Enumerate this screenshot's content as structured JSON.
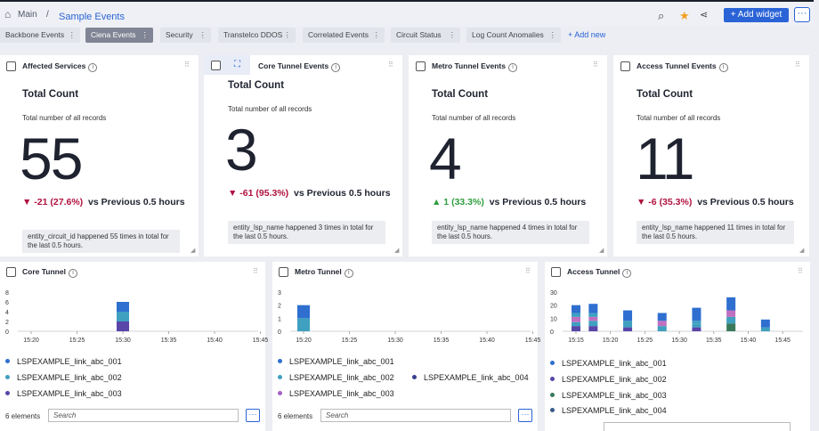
{
  "header": {
    "home_label": "Main",
    "separator": "/",
    "title": "Sample Events",
    "add_widget_label": "+ Add widget",
    "more_label": "···",
    "icons": [
      "search-icon",
      "star-icon",
      "share-icon"
    ]
  },
  "tabs": [
    {
      "label": "Backbone Events"
    },
    {
      "label": "Ciena Events",
      "active": true
    },
    {
      "label": "Security"
    },
    {
      "label": "Transtelco DDOS"
    },
    {
      "label": "Correlated Events"
    },
    {
      "label": "Circuit Status"
    },
    {
      "label": "Log Count Anomalies"
    }
  ],
  "add_new_label": "+ Add new",
  "stat_cards": [
    {
      "title": "Affected Services",
      "label": "Total Count",
      "sub": "Total number of all records",
      "value": "55",
      "delta": "▼ -21 (27.6%)",
      "delta_dir": "down",
      "compare": "vs Previous 0.5 hours",
      "note": "entity_circuit_id happened 55 times in total for the last 0.5 hours."
    },
    {
      "title": "Core Tunnel Events",
      "label": "Total Count",
      "sub": "Total number of all records",
      "value": "3",
      "delta": "▼ -61 (95.3%)",
      "delta_dir": "down",
      "compare": "vs Previous 0.5 hours",
      "note": "entity_lsp_name happened 3 times in total for the last 0.5 hours."
    },
    {
      "title": "Metro Tunnel Events",
      "label": "Total Count",
      "sub": "Total number of all records",
      "value": "4",
      "delta": "▲ 1 (33.3%)",
      "delta_dir": "up",
      "compare": "vs Previous 0.5 hours",
      "note": "entity_lsp_name happened 4 times in total for the last 0.5 hours."
    },
    {
      "title": "Access Tunnel Events",
      "label": "Total Count",
      "sub": "Total number of all records",
      "value": "11",
      "delta": "▼ -6 (35.3%)",
      "delta_dir": "down",
      "compare": "vs Previous 0.5 hours",
      "note": "entity_lsp_name happened 11 times in total for the last 0.5 hours."
    }
  ],
  "chart_panels": [
    {
      "title": "Core Tunnel",
      "elements_label": "6 elements",
      "search_placeholder": "Search",
      "legend": [
        {
          "name": "LSPEXAMPLE_link_abc_001",
          "color": "#2f6fd0"
        },
        {
          "name": "LSPEXAMPLE_link_abc_002",
          "color": "#3fa0c0"
        },
        {
          "name": "LSPEXAMPLE_link_abc_003",
          "color": "#5a45a8"
        }
      ]
    },
    {
      "title": "Metro Tunnel",
      "elements_label": "6 elements",
      "search_placeholder": "Search",
      "legend": [
        {
          "name": "LSPEXAMPLE_link_abc_001",
          "color": "#2f6fd0"
        },
        {
          "name": "LSPEXAMPLE_link_abc_002",
          "color": "#3fa0c0"
        },
        {
          "name": "LSPEXAMPLE_link_abc_004",
          "color": "#3a3f8f"
        },
        {
          "name": "LSPEXAMPLE_link_abc_003",
          "color": "#a560c8"
        }
      ]
    },
    {
      "title": "Access Tunnel",
      "elements_label": "",
      "legend": [
        {
          "name": "LSPEXAMPLE_link_abc_001",
          "color": "#2f6fd0"
        },
        {
          "name": "LSPEXAMPLE_link_abc_002",
          "color": "#5a45a8"
        },
        {
          "name": "LSPEXAMPLE_link_abc_003",
          "color": "#3a7a5a"
        },
        {
          "name": "LSPEXAMPLE_link_abc_004",
          "color": "#3a5a8a"
        }
      ]
    }
  ],
  "chart_data": [
    {
      "type": "bar",
      "x": [
        "15:20",
        "15:25",
        "15:30",
        "15:35",
        "15:40",
        "15:45"
      ],
      "yticks": [
        0,
        2,
        4,
        6,
        8
      ],
      "ylim": [
        0,
        8
      ],
      "stacks": [
        {
          "x": "15:30",
          "parts": [
            {
              "color": "#5a45a8",
              "value": 2
            },
            {
              "color": "#3fa0c0",
              "value": 2
            },
            {
              "color": "#2f6fd0",
              "value": 2
            }
          ]
        }
      ]
    },
    {
      "type": "bar",
      "x": [
        "15:20",
        "15:25",
        "15:30",
        "15:35",
        "15:40",
        "15:45"
      ],
      "yticks": [
        0,
        1,
        2,
        3
      ],
      "ylim": [
        0,
        3
      ],
      "stacks": [
        {
          "x": "15:20",
          "parts": [
            {
              "color": "#3fa0c0",
              "value": 1
            },
            {
              "color": "#2f6fd0",
              "value": 1
            }
          ]
        }
      ]
    },
    {
      "type": "bar",
      "x": [
        "15:15",
        "15:20",
        "15:25",
        "15:30",
        "15:35",
        "15:40",
        "15:45"
      ],
      "yticks": [
        0,
        10,
        20,
        30
      ],
      "ylim": [
        0,
        30
      ],
      "stacks": [
        {
          "x": "15:15",
          "parts": [
            {
              "color": "#5a45a8",
              "value": 4
            },
            {
              "color": "#3fa0c0",
              "value": 3
            },
            {
              "color": "#c070c0",
              "value": 4
            },
            {
              "color": "#3fa0c0",
              "value": 3
            },
            {
              "color": "#2f6fd0",
              "value": 6
            }
          ]
        },
        {
          "x": "15:17.5",
          "parts": [
            {
              "color": "#5a45a8",
              "value": 4
            },
            {
              "color": "#3fa0c0",
              "value": 4
            },
            {
              "color": "#c070c0",
              "value": 3
            },
            {
              "color": "#3fa0c0",
              "value": 3
            },
            {
              "color": "#2f6fd0",
              "value": 7
            }
          ]
        },
        {
          "x": "15:22.5",
          "parts": [
            {
              "color": "#5a45a8",
              "value": 3
            },
            {
              "color": "#3fa0c0",
              "value": 5
            },
            {
              "color": "#2f6fd0",
              "value": 8
            }
          ]
        },
        {
          "x": "15:27.5",
          "parts": [
            {
              "color": "#3fa0c0",
              "value": 4
            },
            {
              "color": "#c070c0",
              "value": 4
            },
            {
              "color": "#2f6fd0",
              "value": 6
            }
          ]
        },
        {
          "x": "15:32.5",
          "parts": [
            {
              "color": "#5a45a8",
              "value": 3
            },
            {
              "color": "#3fa0c0",
              "value": 3
            },
            {
              "color": "#3fa0c0",
              "value": 2
            },
            {
              "color": "#2f6fd0",
              "value": 10
            }
          ]
        },
        {
          "x": "15:37.5",
          "parts": [
            {
              "color": "#3a7a5a",
              "value": 6
            },
            {
              "color": "#3fa0c0",
              "value": 5
            },
            {
              "color": "#c070c0",
              "value": 5
            },
            {
              "color": "#2f6fd0",
              "value": 10
            }
          ]
        },
        {
          "x": "15:42.5",
          "parts": [
            {
              "color": "#3fa0c0",
              "value": 3
            },
            {
              "color": "#2f6fd0",
              "value": 6
            }
          ]
        }
      ]
    }
  ]
}
